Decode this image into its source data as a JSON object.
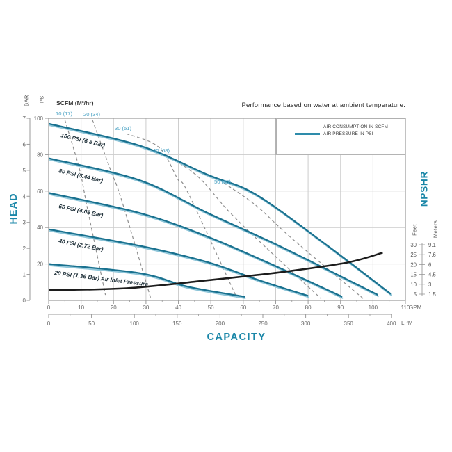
{
  "chart_data": {
    "type": "line",
    "title": "Performance based on water at ambient temperature.",
    "scfm_header": "SCFM (M³/hr)",
    "x_axis": {
      "label": "CAPACITY",
      "gpm": {
        "unit": "GPM",
        "ticks": [
          0,
          10,
          20,
          30,
          40,
          50,
          60,
          70,
          80,
          90,
          100,
          110
        ],
        "range": [
          0,
          110
        ]
      },
      "lpm": {
        "unit": "LPM",
        "ticks": [
          0,
          50,
          100,
          150,
          200,
          250,
          300,
          350,
          400
        ],
        "range": [
          0,
          400
        ]
      }
    },
    "y_axis_left": {
      "label": "HEAD",
      "bar": {
        "unit": "BAR",
        "ticks": [
          7,
          6,
          5,
          4,
          3,
          2,
          1,
          0
        ],
        "range": [
          0,
          7
        ]
      },
      "psi": {
        "unit": "PSI",
        "ticks": [
          100,
          80,
          60,
          40,
          20
        ],
        "range": [
          0,
          100
        ]
      }
    },
    "y_axis_right": {
      "label": "NPSHR",
      "feet_label": "Feet",
      "meters_label": "Meters",
      "feet_ticks": [
        30,
        25,
        20,
        15,
        10,
        5
      ],
      "meter_ticks": [
        "9.1",
        "7.6",
        "6",
        "4.5",
        "3",
        "1.5"
      ]
    },
    "air_pressure_curves": [
      {
        "label": "100 PSI (6.8 Bar)",
        "points_gpm_psi": [
          [
            0,
            97
          ],
          [
            28,
            85
          ],
          [
            49,
            69
          ],
          [
            64,
            58
          ],
          [
            86,
            30
          ],
          [
            105.5,
            3.5
          ]
        ]
      },
      {
        "label": "80 PSI (5.44 Bar)",
        "points_gpm_psi": [
          [
            0,
            78
          ],
          [
            28,
            66
          ],
          [
            49,
            48
          ],
          [
            71,
            30
          ],
          [
            101.5,
            3
          ]
        ]
      },
      {
        "label": "60 PSI (4.08 Bar)",
        "points_gpm_psi": [
          [
            0,
            59
          ],
          [
            28,
            48
          ],
          [
            49,
            35
          ],
          [
            71,
            18
          ],
          [
            90.5,
            2
          ]
        ]
      },
      {
        "label": "40 PSI (2.72 Bar)",
        "points_gpm_psi": [
          [
            0,
            39
          ],
          [
            28,
            30
          ],
          [
            49,
            21
          ],
          [
            65,
            11
          ],
          [
            80,
            2.5
          ]
        ]
      },
      {
        "label": "20 PSI (1.36 Bar) Air Inlet Pressure",
        "points_gpm_psi": [
          [
            0,
            20
          ],
          [
            28,
            15
          ],
          [
            43,
            7.5
          ],
          [
            60.5,
            2
          ]
        ]
      }
    ],
    "air_consumption_lines": [
      {
        "label": "10 (17)",
        "scfm": 10,
        "points_gpm_psi": [
          [
            5,
            99
          ],
          [
            9.5,
            72
          ],
          [
            12,
            50
          ],
          [
            17.5,
            3
          ]
        ]
      },
      {
        "label": "20 (34)",
        "scfm": 20,
        "points_gpm_psi": [
          [
            13.5,
            99
          ],
          [
            19,
            72
          ],
          [
            22.5,
            55
          ],
          [
            31.5,
            1
          ]
        ]
      },
      {
        "label": "30 (51)",
        "scfm": 30,
        "points_gpm_psi": [
          [
            24,
            91.5
          ],
          [
            34,
            84
          ],
          [
            40,
            66
          ],
          [
            43,
            59
          ],
          [
            58,
            1.5
          ]
        ]
      },
      {
        "label": "40 (68)",
        "scfm": 40,
        "points_gpm_psi": [
          [
            36,
            80
          ],
          [
            46,
            68
          ],
          [
            56,
            48
          ],
          [
            70,
            24
          ],
          [
            84,
            1
          ]
        ]
      },
      {
        "label": "50 (85)",
        "scfm": 50,
        "points_gpm_psi": [
          [
            54,
            64.5
          ],
          [
            64,
            52
          ],
          [
            75,
            34
          ],
          [
            97,
            1
          ]
        ]
      }
    ],
    "npshr_curve": {
      "points_gpm_feet": [
        [
          0,
          7
        ],
        [
          24,
          8
        ],
        [
          49,
          12
        ],
        [
          71,
          16
        ],
        [
          92,
          21
        ],
        [
          103,
          26
        ]
      ]
    },
    "legend": [
      {
        "label": "AIR CONSUMPTION IN SCFM",
        "style": "dashed"
      },
      {
        "label": "AIR PRESSURE IN PSI",
        "style": "solid"
      }
    ],
    "colors": {
      "curve_teal": "#19718f",
      "curve_teal_light": "#8fc6d9",
      "accent_text": "#1b87a8",
      "dashed_gray": "#8f8f8f",
      "grid": "#cccccc",
      "border": "#999999",
      "npshr_black": "#1c1c1c",
      "scfm_label": "#4aa2c4",
      "curve_label": "#22333c",
      "tick_text": "#666666"
    }
  }
}
